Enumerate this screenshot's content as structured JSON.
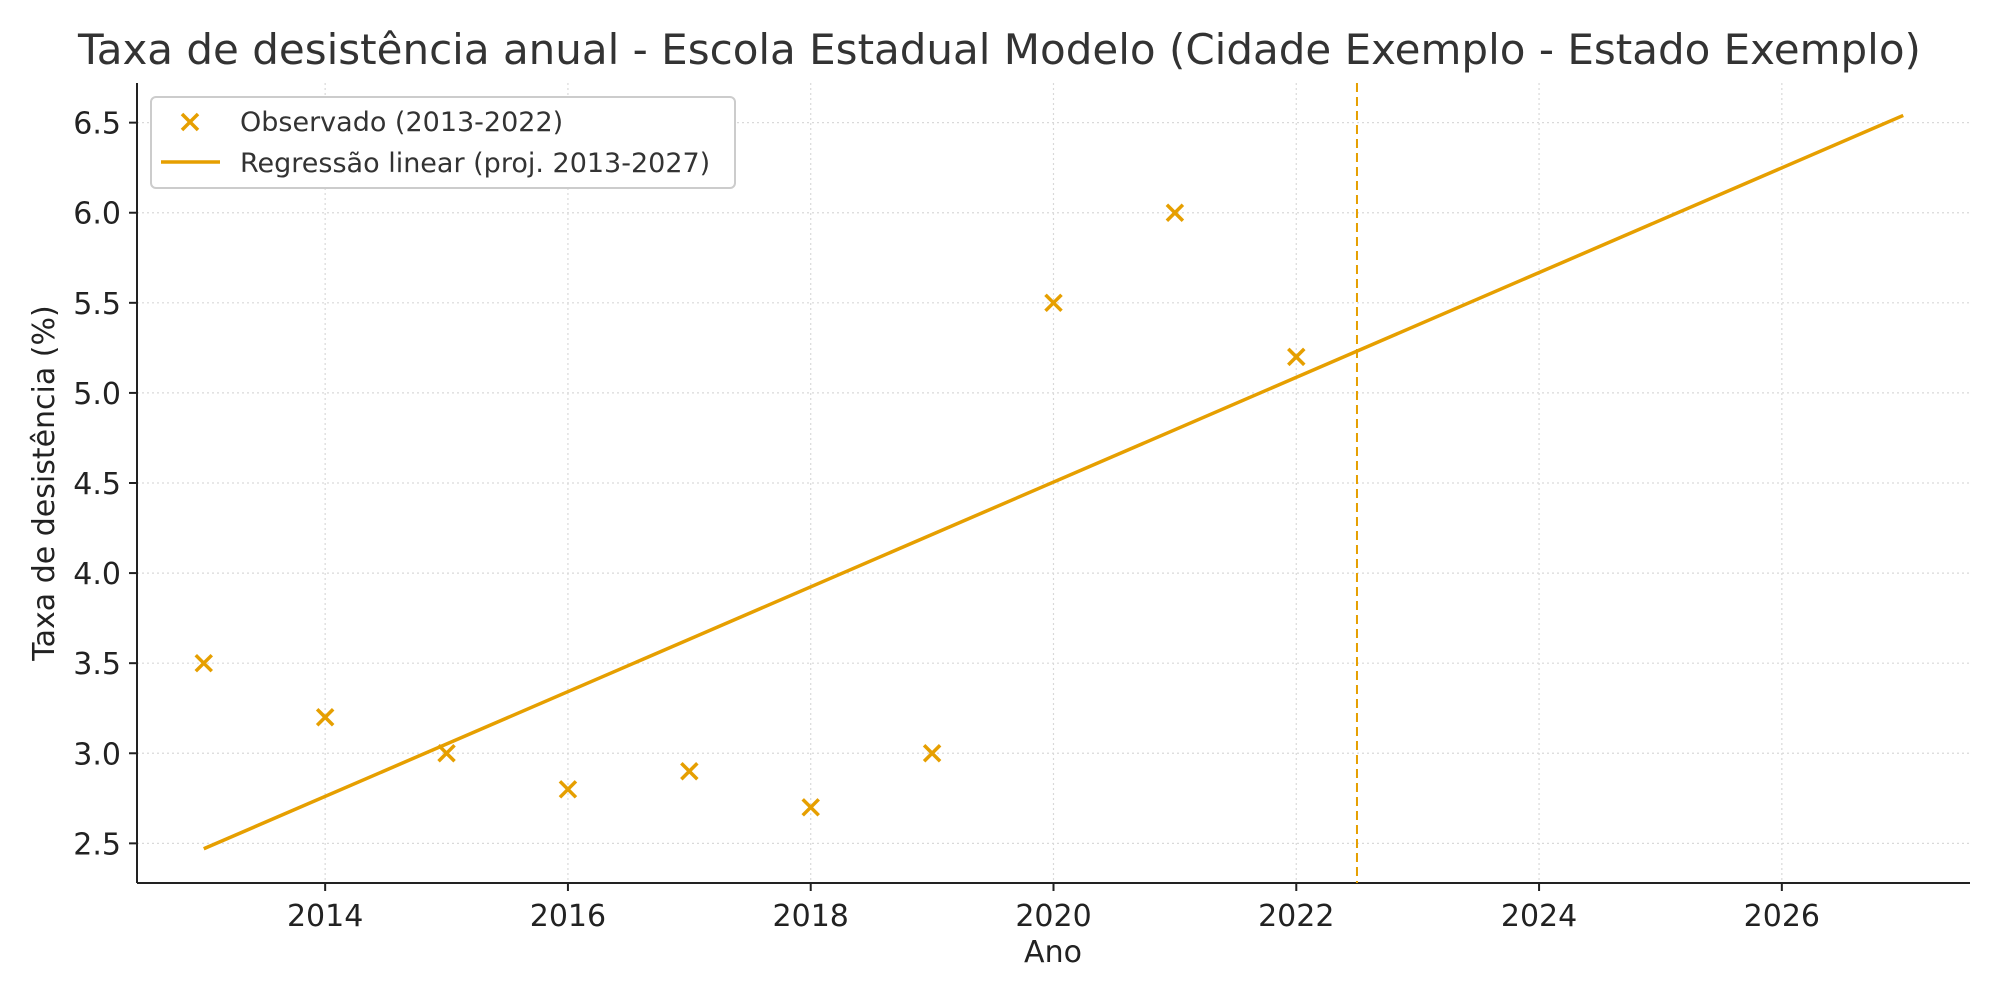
{
  "chart_data": {
    "type": "scatter",
    "title": "Taxa de desistência anual - Escola Estadual Modelo (Cidade Exemplo - Estado Exemplo)",
    "xlabel": "Ano",
    "ylabel": "Taxa de desistência (%)",
    "xlim": [
      2012.45,
      2027.55
    ],
    "ylim": [
      2.28,
      6.72
    ],
    "x_ticks": [
      2014,
      2016,
      2018,
      2020,
      2022,
      2024,
      2026
    ],
    "x_tick_labels": [
      "2014",
      "2016",
      "2018",
      "2020",
      "2022",
      "2024",
      "2026"
    ],
    "y_ticks": [
      2.5,
      3.0,
      3.5,
      4.0,
      4.5,
      5.0,
      5.5,
      6.0,
      6.5
    ],
    "y_tick_labels": [
      "2.5",
      "3.0",
      "3.5",
      "4.0",
      "4.5",
      "5.0",
      "5.5",
      "6.0",
      "6.5"
    ],
    "grid": true,
    "legend_position": "top-left",
    "color": "#E69F00",
    "series": [
      {
        "name": "Observado (2013-2022)",
        "kind": "scatter",
        "marker": "x",
        "x": [
          2013,
          2014,
          2015,
          2016,
          2017,
          2018,
          2019,
          2020,
          2021,
          2022
        ],
        "y": [
          3.5,
          3.2,
          3.0,
          2.8,
          2.9,
          2.7,
          3.0,
          5.5,
          6.0,
          5.2
        ]
      },
      {
        "name": "Regressão linear (proj. 2013-2027)",
        "kind": "line",
        "x": [
          2013,
          2027
        ],
        "y": [
          2.47,
          6.54
        ]
      }
    ],
    "vline": {
      "x": 2022.5,
      "style": "dashed"
    }
  }
}
